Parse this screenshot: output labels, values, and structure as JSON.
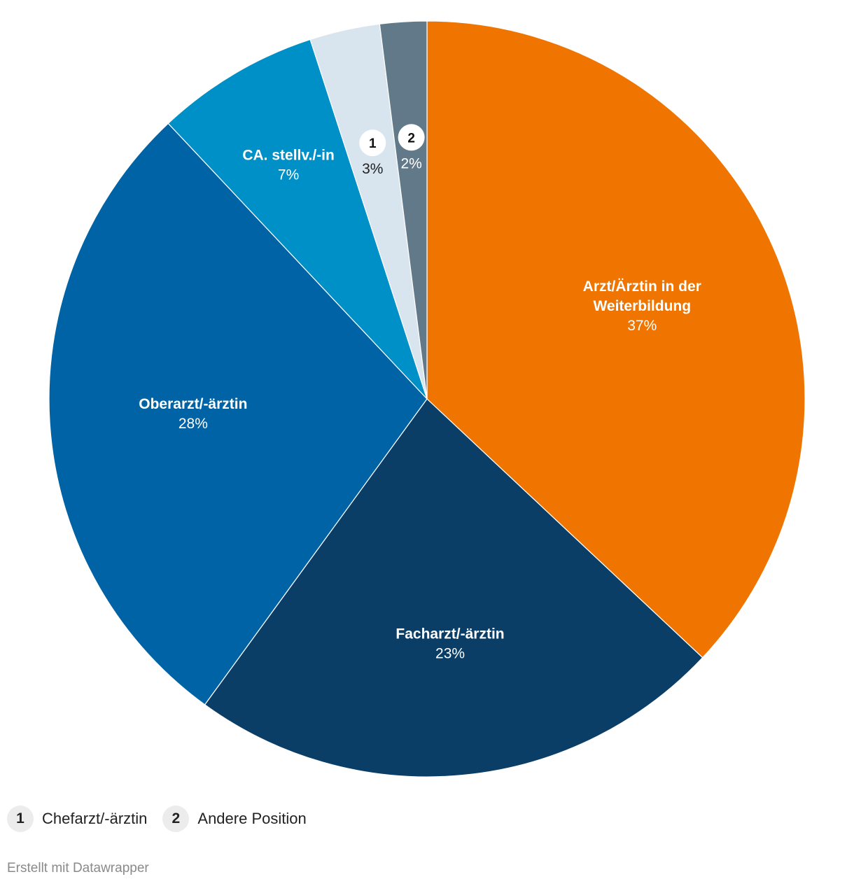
{
  "chart_data": {
    "type": "pie",
    "start_angle_deg": 0,
    "direction": "clockwise",
    "slices": [
      {
        "label": "Arzt/Ärztin in der Weiterbildung",
        "label_lines": [
          "Arzt/Ärztin in der",
          "Weiterbildung"
        ],
        "value": 37,
        "pct_label": "37%",
        "color": "#ef7500"
      },
      {
        "label": "Facharzt/-ärztin",
        "label_lines": [
          "Facharzt/-ärztin"
        ],
        "value": 23,
        "pct_label": "23%",
        "color": "#0a3e66"
      },
      {
        "label": "Oberarzt/-ärztin",
        "label_lines": [
          "Oberarzt/-ärztin"
        ],
        "value": 28,
        "pct_label": "28%",
        "color": "#0063a5"
      },
      {
        "label": "CA. stellv./-in",
        "label_lines": [
          "CA. stellv./-in"
        ],
        "value": 7,
        "pct_label": "7%",
        "color": "#0090c8"
      },
      {
        "label": "Chefarzt/-ärztin",
        "label_lines": [],
        "marker": "1",
        "value": 3,
        "pct_label": "3%",
        "color": "#d8e4ee"
      },
      {
        "label": "Andere Position",
        "label_lines": [],
        "marker": "2",
        "value": 2,
        "pct_label": "2%",
        "color": "#62798a"
      }
    ]
  },
  "legend": {
    "items": [
      {
        "marker": "1",
        "label": "Chefarzt/-ärztin"
      },
      {
        "marker": "2",
        "label": "Andere Position"
      }
    ]
  },
  "footer": {
    "credit": "Erstellt mit Datawrapper"
  }
}
